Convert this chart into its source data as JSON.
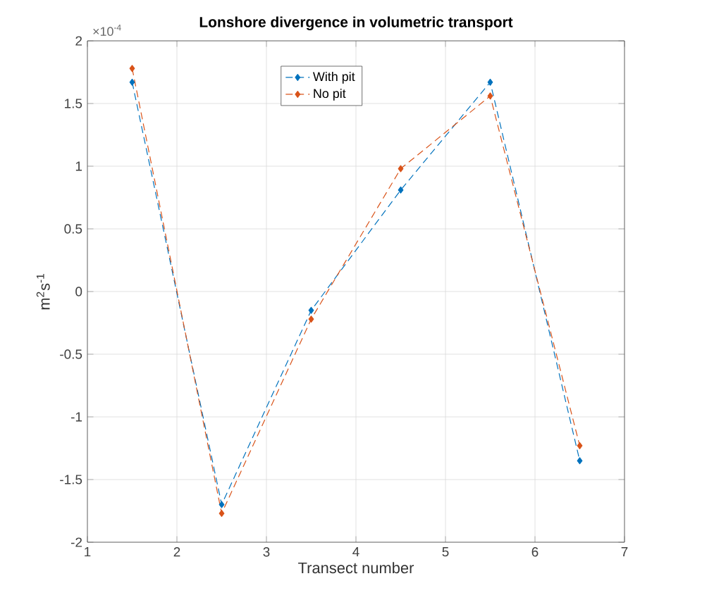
{
  "chart_data": {
    "type": "line",
    "title": "**Lonshore divergence in volumetric transport**",
    "xlabel": "Transect number",
    "ylabel": "m$^{2}$s$^{-1}$",
    "annotations": [
      "×10$^{-4}$"
    ],
    "x": [
      1.5,
      2.5,
      3.5,
      4.5,
      5.5,
      6.5
    ],
    "series": [
      {
        "name": "With pit",
        "color": "#0072bd",
        "values": [
          1.67,
          -1.7,
          -0.15,
          0.81,
          1.67,
          -1.35
        ]
      },
      {
        "name": "No pit",
        "color": "#d95319",
        "values": [
          1.78,
          -1.77,
          -0.22,
          0.98,
          1.56,
          -1.23
        ]
      }
    ],
    "xlim": [
      1,
      7
    ],
    "xticks": [
      1,
      2,
      3,
      4,
      5,
      6,
      7
    ],
    "ylim": [
      -2,
      2
    ],
    "yticks": [
      -2,
      -1.5,
      -1,
      -0.5,
      0,
      0.5,
      1,
      1.5,
      2
    ],
    "grid": true,
    "legend": "top",
    "marker": "diamond",
    "line_style": "dashed"
  }
}
